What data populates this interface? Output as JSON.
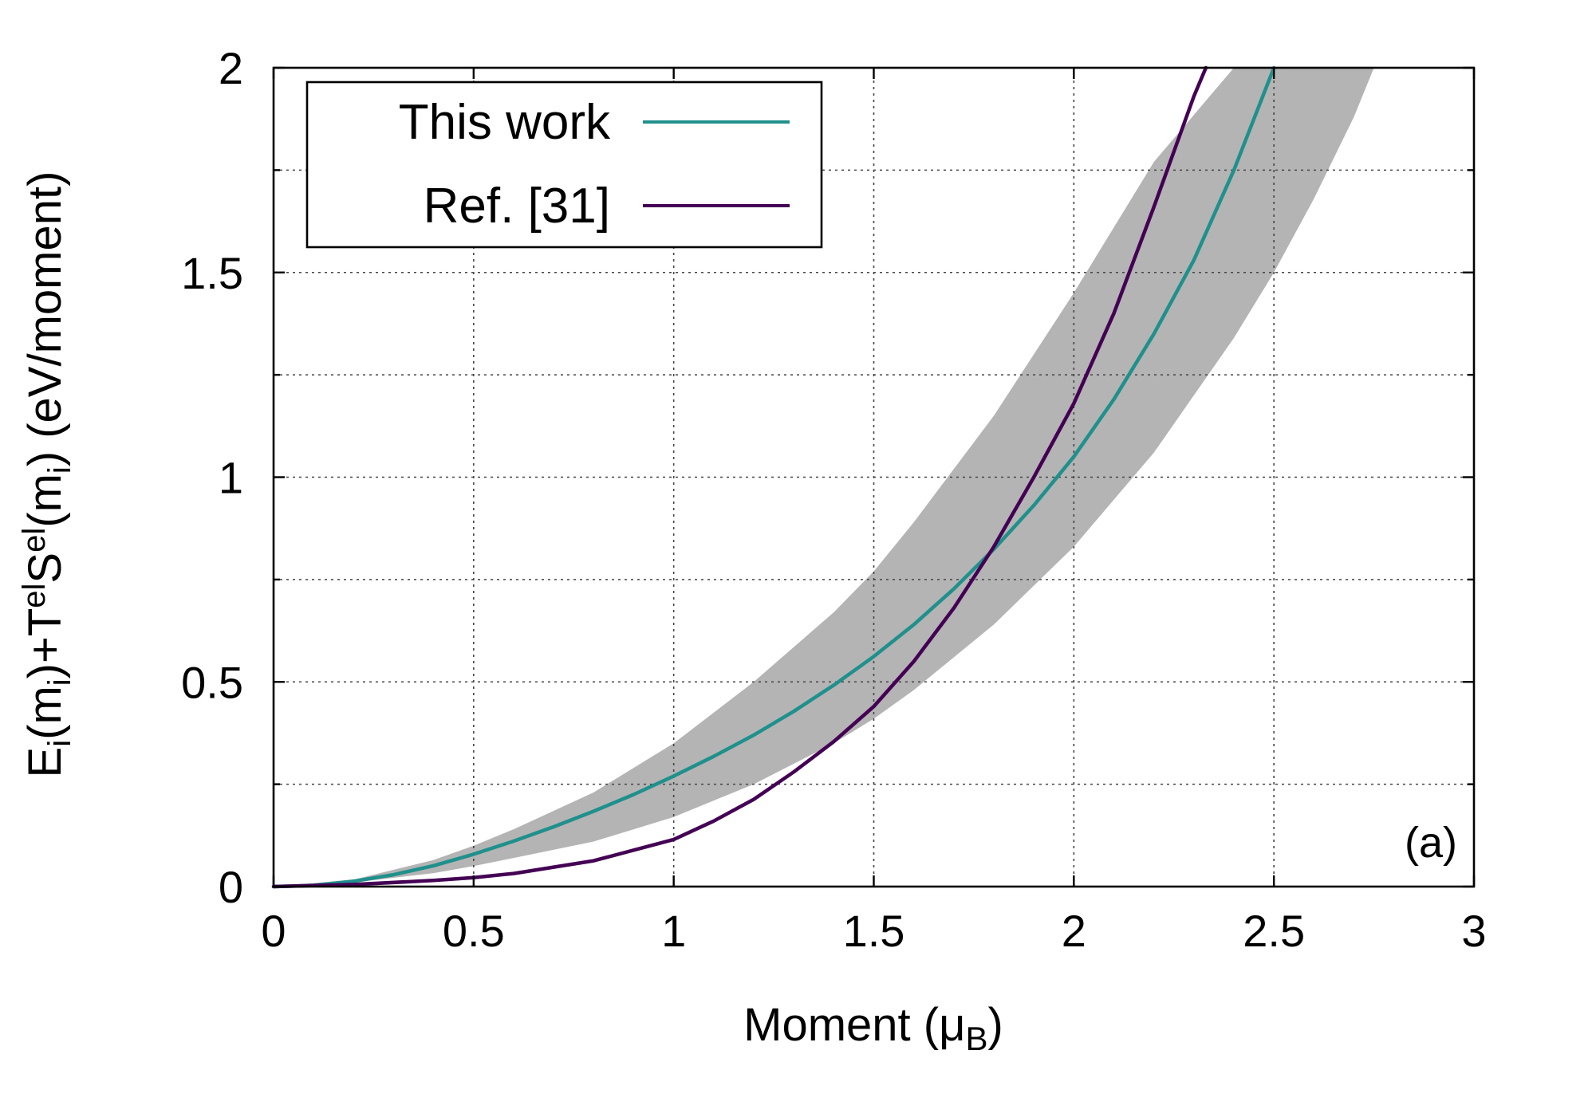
{
  "chart_data": {
    "type": "line",
    "x_axis": {
      "label_main": "Moment (μ",
      "label_sub": "B",
      "label_end": ")",
      "range": [
        0,
        3
      ],
      "ticks": [
        0,
        0.5,
        1,
        1.5,
        2,
        2.5,
        3
      ],
      "tick_labels": [
        "0",
        "0.5",
        "1",
        "1.5",
        "2",
        "2.5",
        "3"
      ]
    },
    "y_axis": {
      "label_parts": {
        "p1": "E",
        "p1_sub": "i",
        "p2": "(m",
        "p2_sub": "i",
        "p3": ")+T",
        "p3_sup": "el",
        "p4": "S",
        "p4_sup": "el",
        "p5": "(m",
        "p5_sub": "i",
        "p6": ") (eV/moment)"
      },
      "range": [
        0,
        2
      ],
      "ticks": [
        0,
        0.5,
        1,
        1.5,
        2
      ],
      "tick_labels": [
        "0",
        "0.5",
        "1",
        "1.5",
        "2"
      ],
      "minor_ticks": [
        0.25,
        0.75,
        1.25,
        1.75
      ]
    },
    "grid": true,
    "legend": {
      "placement": "top-left",
      "entries": [
        {
          "label": "This work",
          "color": "#20908c"
        },
        {
          "label": "Ref. [31]",
          "color": "#440154"
        }
      ]
    },
    "panel_label": "(a)",
    "series": [
      {
        "name": "This work",
        "color": "#20908c",
        "x": [
          0,
          0.1,
          0.2,
          0.3,
          0.4,
          0.5,
          0.6,
          0.7,
          0.8,
          0.9,
          1.0,
          1.1,
          1.2,
          1.3,
          1.4,
          1.5,
          1.6,
          1.7,
          1.8,
          1.9,
          2.0,
          2.1,
          2.2,
          2.3,
          2.4,
          2.5
        ],
        "y": [
          0,
          0.003,
          0.013,
          0.029,
          0.051,
          0.079,
          0.111,
          0.146,
          0.184,
          0.225,
          0.27,
          0.318,
          0.37,
          0.428,
          0.492,
          0.562,
          0.64,
          0.727,
          0.824,
          0.931,
          1.05,
          1.19,
          1.35,
          1.53,
          1.75,
          2.0
        ]
      },
      {
        "name": "Ref. [31]",
        "color": "#440154",
        "x": [
          0,
          0.2,
          0.4,
          0.5,
          0.6,
          0.8,
          1.0,
          1.1,
          1.2,
          1.3,
          1.4,
          1.5,
          1.6,
          1.7,
          1.8,
          1.9,
          2.0,
          2.1,
          2.2,
          2.3,
          2.33
        ],
        "y": [
          0,
          0.005,
          0.015,
          0.022,
          0.032,
          0.063,
          0.115,
          0.16,
          0.213,
          0.28,
          0.354,
          0.44,
          0.55,
          0.68,
          0.83,
          1.0,
          1.18,
          1.4,
          1.66,
          1.93,
          2.0
        ]
      }
    ],
    "uncertainty_band": {
      "color": "#b4b4b4",
      "x": [
        0,
        0.2,
        0.4,
        0.5,
        0.6,
        0.8,
        1.0,
        1.2,
        1.4,
        1.5,
        1.6,
        1.8,
        2.0,
        2.2,
        2.4,
        2.5,
        2.6,
        2.7,
        2.75
      ],
      "lower": [
        0,
        0.01,
        0.033,
        0.05,
        0.07,
        0.11,
        0.17,
        0.25,
        0.35,
        0.41,
        0.48,
        0.64,
        0.83,
        1.06,
        1.34,
        1.5,
        1.68,
        1.88,
        2.0
      ],
      "upper": [
        0,
        0.017,
        0.065,
        0.1,
        0.14,
        0.23,
        0.35,
        0.5,
        0.67,
        0.77,
        0.89,
        1.15,
        1.45,
        1.77,
        2.0,
        2.0,
        2.0,
        2.0,
        2.0
      ]
    }
  }
}
